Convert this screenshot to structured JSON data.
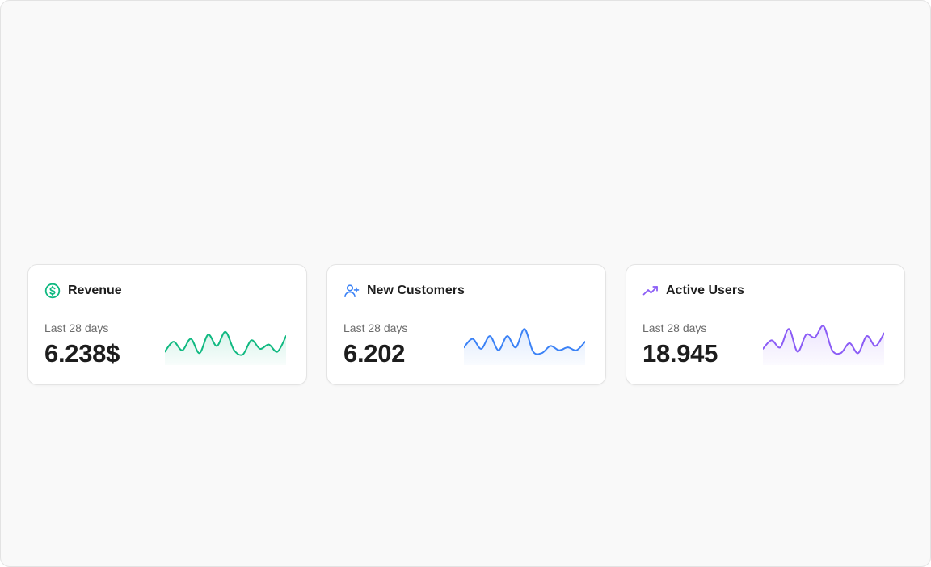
{
  "cards": [
    {
      "title": "Revenue",
      "period": "Last 28 days",
      "value": "6.238$",
      "icon": "dollar-circle-icon",
      "color": "#10b981",
      "trend": [
        12,
        26,
        14,
        30,
        10,
        36,
        20,
        40,
        14,
        8,
        28,
        16,
        22,
        12,
        34
      ]
    },
    {
      "title": "New Customers",
      "period": "Last 28 days",
      "value": "6.202",
      "icon": "user-plus-icon",
      "color": "#3b82f6",
      "trend": [
        18,
        30,
        16,
        34,
        14,
        34,
        18,
        44,
        12,
        10,
        20,
        14,
        18,
        14,
        26
      ]
    },
    {
      "title": "Active Users",
      "period": "Last 28 days",
      "value": "18.945",
      "icon": "trending-up-icon",
      "color": "#8b5cf6",
      "trend": [
        16,
        28,
        18,
        44,
        12,
        36,
        32,
        48,
        14,
        10,
        24,
        10,
        34,
        20,
        38
      ]
    }
  ]
}
